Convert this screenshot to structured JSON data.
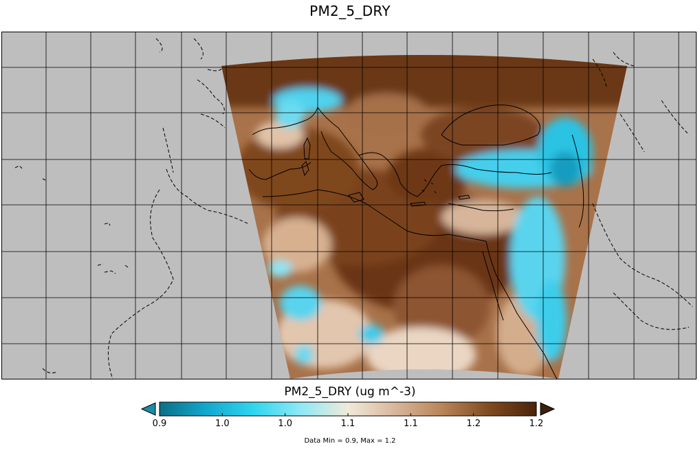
{
  "map": {
    "title": "PM2_5_DRY",
    "projection": "lambert-conformal",
    "background_color": "#bebebe",
    "boundary_color": "#000000"
  },
  "colorbar": {
    "label": "PM2_5_DRY (ug m^-3)",
    "min": 0.9,
    "max": 1.2,
    "tick_labels": [
      "0.9",
      "1.0",
      "1.0",
      "1.1",
      "1.1",
      "1.2",
      "1.2"
    ],
    "colors": [
      "#0a6f86",
      "#13a8cf",
      "#2fd6ef",
      "#8fe9f6",
      "#f0ead9",
      "#d9b69b",
      "#b88458",
      "#7f4a20",
      "#4a240a"
    ],
    "left_extend_color": "#1e8aa5",
    "right_extend_color": "#3d1f0b"
  },
  "data_range_text": "Data Min = 0.9, Max = 1.2"
}
